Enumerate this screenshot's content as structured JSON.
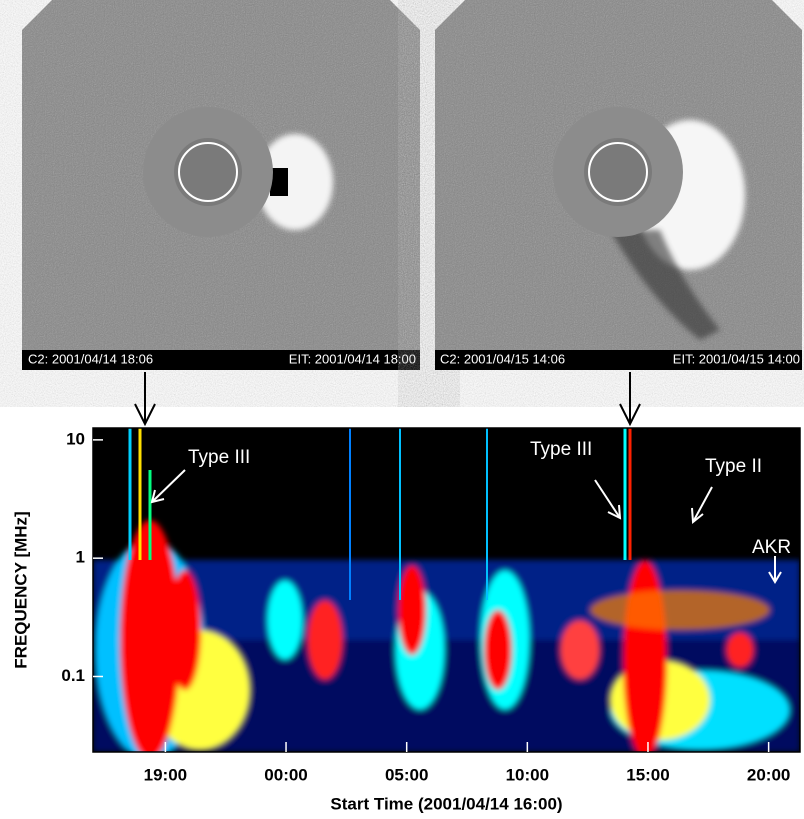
{
  "images": [
    {
      "caption_left": "C2: 2001/04/14 18:06",
      "caption_right": "EIT: 2001/04/14 18:00"
    },
    {
      "caption_left": "C2: 2001/04/15 14:06",
      "caption_right": "EIT: 2001/04/15 14:00"
    }
  ],
  "chart_data": {
    "type": "spectrogram",
    "xlabel": "Start Time (2001/04/14 16:00)",
    "ylabel": "FREQUENCY [MHz]",
    "log_y": true,
    "xlim": [
      0,
      29.3
    ],
    "ylim": [
      0.023,
      12.6
    ],
    "xticks": [
      {
        "value": 3,
        "label": "19:00"
      },
      {
        "value": 8,
        "label": "00:00"
      },
      {
        "value": 13,
        "label": "05:00"
      },
      {
        "value": 18,
        "label": "10:00"
      },
      {
        "value": 23,
        "label": "15:00"
      },
      {
        "value": 28,
        "label": "20:00"
      }
    ],
    "yticks": [
      0.1,
      1,
      10
    ],
    "annotations": [
      "Type III",
      "Type III",
      "Type II",
      "AKR"
    ]
  }
}
